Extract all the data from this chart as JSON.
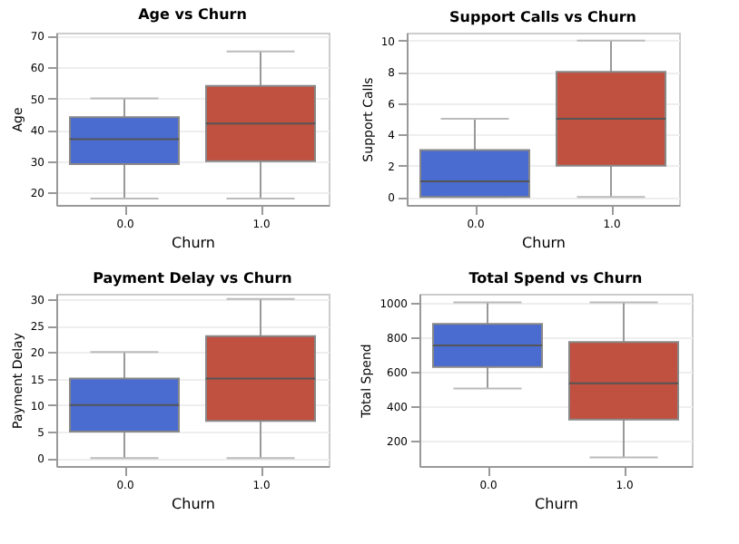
{
  "chart_data": [
    {
      "type": "box",
      "title": "Age vs Churn",
      "xlabel": "Churn",
      "ylabel": "Age",
      "categories": [
        "0.0",
        "1.0"
      ],
      "colors": [
        "#4a6bd0",
        "#c05040"
      ],
      "boxes": [
        {
          "low": 18,
          "q1": 29,
          "median": 37,
          "q3": 44,
          "high": 50
        },
        {
          "low": 18,
          "q1": 30,
          "median": 42,
          "q3": 54,
          "high": 65
        }
      ],
      "ylim": [
        16,
        71
      ],
      "yticks": [
        20,
        30,
        40,
        50,
        60,
        70
      ],
      "grid": "y"
    },
    {
      "type": "box",
      "title": "Support Calls vs Churn",
      "xlabel": "Churn",
      "ylabel": "Support Calls",
      "categories": [
        "0.0",
        "1.0"
      ],
      "colors": [
        "#4a6bd0",
        "#c05040"
      ],
      "boxes": [
        {
          "low": 0,
          "q1": 0,
          "median": 1,
          "q3": 3,
          "high": 5
        },
        {
          "low": 0,
          "q1": 2,
          "median": 5,
          "q3": 8,
          "high": 10
        }
      ],
      "ylim": [
        -0.5,
        10.5
      ],
      "yticks": [
        0,
        2,
        4,
        6,
        8,
        10
      ],
      "grid": "y"
    },
    {
      "type": "box",
      "title": "Payment Delay vs Churn",
      "xlabel": "Churn",
      "ylabel": "Payment Delay",
      "categories": [
        "0.0",
        "1.0"
      ],
      "colors": [
        "#4a6bd0",
        "#c05040"
      ],
      "boxes": [
        {
          "low": 0,
          "q1": 5,
          "median": 10,
          "q3": 15,
          "high": 20
        },
        {
          "low": 0,
          "q1": 7,
          "median": 15,
          "q3": 23,
          "high": 30
        }
      ],
      "ylim": [
        -1.5,
        31
      ],
      "yticks": [
        0,
        5,
        10,
        15,
        20,
        25,
        30
      ],
      "grid": "y"
    },
    {
      "type": "box",
      "title": "Total Spend vs Churn",
      "xlabel": "Churn",
      "ylabel": "Total Spend",
      "categories": [
        "0.0",
        "1.0"
      ],
      "colors": [
        "#4a6bd0",
        "#c05040"
      ],
      "boxes": [
        {
          "low": 500,
          "q1": 625,
          "median": 750,
          "q3": 875,
          "high": 1000
        },
        {
          "low": 100,
          "q1": 320,
          "median": 530,
          "q3": 770,
          "high": 1000
        }
      ],
      "ylim": [
        50,
        1050
      ],
      "yticks": [
        200,
        400,
        600,
        800,
        1000
      ],
      "grid": "y"
    }
  ]
}
